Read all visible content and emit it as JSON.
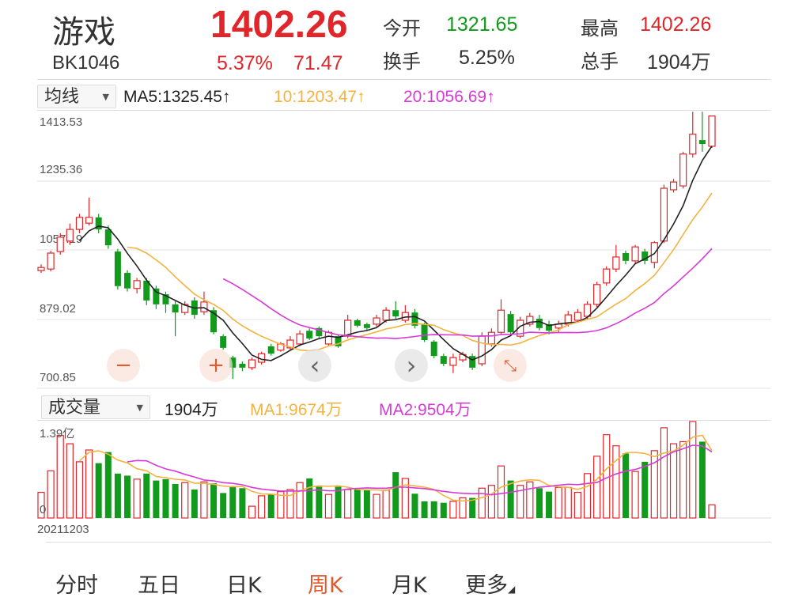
{
  "header": {
    "name": "游戏",
    "code": "BK1046",
    "price": "1402.26",
    "change_pct": "5.37%",
    "change": "71.47",
    "open_label": "今开",
    "open": "1321.65",
    "high_label": "最高",
    "high": "1402.26",
    "turnover_label": "换手",
    "turnover": "5.25%",
    "volume_label": "总手",
    "volume": "1904万"
  },
  "colors": {
    "up": "#e0262a",
    "down": "#119a1c",
    "ma5": "#222222",
    "ma10": "#f2b340",
    "ma20": "#d63bd6"
  },
  "price_panel": {
    "selector": "均线",
    "ma5": "MA5:1325.45↑",
    "ma10": "10:1203.47↑",
    "ma20": "20:1056.69↑",
    "y_labels": [
      "1413.53",
      "1235.36",
      "1057.19",
      "879.02",
      "700.85"
    ]
  },
  "volume_panel": {
    "selector": "成交量",
    "volume": "1904万",
    "ma1": "MA1:9674万",
    "ma2": "MA2:9504万",
    "y_top": "1.39亿",
    "y_bottom": "0"
  },
  "controls": {
    "zoom_out": "−",
    "zoom_in": "+",
    "prev": "‹",
    "next": "›",
    "reset_icon": "compress-icon"
  },
  "start_date": "20211203",
  "tabs": [
    {
      "label": "分时"
    },
    {
      "label": "五日"
    },
    {
      "label": "日K"
    },
    {
      "label": "周K",
      "active": true
    },
    {
      "label": "月K"
    },
    {
      "label": "更多"
    }
  ],
  "chart_data": {
    "type": "candlestick",
    "ylim": [
      700.85,
      1413.53
    ],
    "volume_ylim": [
      0,
      13900
    ],
    "ohlc": [
      [
        1004,
        1020,
        998,
        1012
      ],
      [
        1008,
        1055,
        1002,
        1049
      ],
      [
        1053,
        1100,
        1045,
        1090
      ],
      [
        1080,
        1125,
        1070,
        1110
      ],
      [
        1110,
        1150,
        1100,
        1141
      ],
      [
        1126,
        1192,
        1120,
        1141
      ],
      [
        1141,
        1150,
        1100,
        1110
      ],
      [
        1110,
        1120,
        1060,
        1069
      ],
      [
        1053,
        1060,
        955,
        964
      ],
      [
        998,
        1005,
        950,
        958
      ],
      [
        958,
        985,
        945,
        978
      ],
      [
        978,
        985,
        915,
        927
      ],
      [
        958,
        965,
        905,
        917
      ],
      [
        943,
        950,
        895,
        917
      ],
      [
        917,
        925,
        835,
        896
      ],
      [
        896,
        925,
        890,
        917
      ],
      [
        927,
        935,
        880,
        890
      ],
      [
        898,
        950,
        890,
        923
      ],
      [
        902,
        910,
        840,
        845
      ],
      [
        835,
        840,
        800,
        805
      ],
      [
        780,
        785,
        725,
        754
      ],
      [
        764,
        770,
        745,
        754
      ],
      [
        754,
        780,
        748,
        774
      ],
      [
        768,
        795,
        762,
        790
      ],
      [
        809,
        815,
        785,
        790
      ],
      [
        799,
        820,
        795,
        815
      ],
      [
        805,
        835,
        800,
        825
      ],
      [
        815,
        850,
        810,
        841
      ],
      [
        849,
        855,
        825,
        829
      ],
      [
        856,
        860,
        830,
        835
      ],
      [
        815,
        850,
        810,
        845
      ],
      [
        835,
        840,
        805,
        809
      ],
      [
        835,
        890,
        830,
        876
      ],
      [
        876,
        880,
        858,
        862
      ],
      [
        866,
        870,
        850,
        856
      ],
      [
        866,
        890,
        860,
        882
      ],
      [
        876,
        910,
        870,
        902
      ],
      [
        902,
        925,
        880,
        886
      ],
      [
        876,
        915,
        870,
        896
      ],
      [
        896,
        905,
        855,
        862
      ],
      [
        866,
        870,
        820,
        825
      ],
      [
        821,
        825,
        778,
        784
      ],
      [
        784,
        790,
        758,
        764
      ],
      [
        760,
        790,
        740,
        780
      ],
      [
        774,
        795,
        768,
        788
      ],
      [
        784,
        790,
        748,
        754
      ],
      [
        764,
        845,
        758,
        835
      ],
      [
        815,
        855,
        808,
        845
      ],
      [
        845,
        930,
        840,
        902
      ],
      [
        892,
        900,
        840,
        845
      ],
      [
        835,
        885,
        830,
        876
      ],
      [
        866,
        895,
        860,
        886
      ],
      [
        880,
        890,
        850,
        856
      ],
      [
        866,
        875,
        840,
        849
      ],
      [
        856,
        875,
        845,
        866
      ],
      [
        866,
        900,
        860,
        890
      ],
      [
        876,
        905,
        870,
        896
      ],
      [
        886,
        925,
        880,
        917
      ],
      [
        917,
        975,
        910,
        968
      ],
      [
        972,
        1015,
        965,
        1008
      ],
      [
        1008,
        1070,
        1000,
        1039
      ],
      [
        1049,
        1055,
        1020,
        1029
      ],
      [
        1029,
        1070,
        1020,
        1065
      ],
      [
        1053,
        1060,
        1020,
        1029
      ],
      [
        1025,
        1080,
        1010,
        1076
      ],
      [
        1080,
        1225,
        1075,
        1216
      ],
      [
        1212,
        1240,
        1205,
        1232
      ],
      [
        1222,
        1310,
        1215,
        1304
      ],
      [
        1304,
        1413,
        1295,
        1355
      ],
      [
        1340,
        1413,
        1310,
        1330
      ],
      [
        1324,
        1402,
        1320,
        1402
      ]
    ],
    "volume": [
      3700,
      6800,
      11900,
      10700,
      8100,
      9800,
      7900,
      9500,
      6400,
      6100,
      5600,
      6400,
      5400,
      5600,
      4900,
      5100,
      4100,
      5200,
      5000,
      3600,
      4600,
      4300,
      1700,
      3200,
      3400,
      3800,
      4100,
      5100,
      5700,
      4500,
      3400,
      4500,
      4100,
      4100,
      4100,
      3400,
      4000,
      6600,
      5700,
      3500,
      2400,
      2400,
      2200,
      2400,
      2900,
      2900,
      4300,
      4700,
      7500,
      5400,
      4700,
      5200,
      4300,
      3800,
      4400,
      4400,
      3700,
      6400,
      8900,
      12000,
      10400,
      9300,
      6700,
      8100,
      9700,
      13000,
      10700,
      11000,
      13900,
      11000,
      1904
    ],
    "ma_periods": [
      5,
      10,
      20
    ],
    "volume_ma_periods": [
      5,
      10
    ]
  }
}
